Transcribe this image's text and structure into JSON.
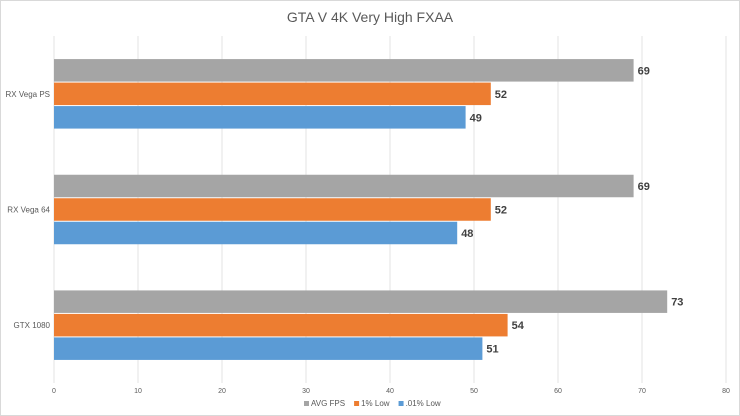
{
  "chart_data": {
    "type": "bar",
    "orientation": "horizontal",
    "title": "GTA V 4K Very High FXAA",
    "xlabel": "",
    "ylabel": "",
    "xlim": [
      0,
      80
    ],
    "xticks": [
      "0",
      "10",
      "20",
      "30",
      "40",
      "50",
      "60",
      "70",
      "80"
    ],
    "categories": [
      "RX Vega PS",
      "RX Vega 64",
      "GTX 1080"
    ],
    "series": [
      {
        "name": "AVG FPS",
        "color": "#a5a5a5",
        "values": [
          69,
          69,
          73
        ]
      },
      {
        "name": "1% Low",
        "color": "#ed7d31",
        "values": [
          52,
          52,
          54
        ]
      },
      {
        "name": ".01% Low",
        "color": "#5b9bd5",
        "values": [
          49,
          48,
          51
        ]
      }
    ],
    "grid": true,
    "legend_position": "bottom"
  }
}
